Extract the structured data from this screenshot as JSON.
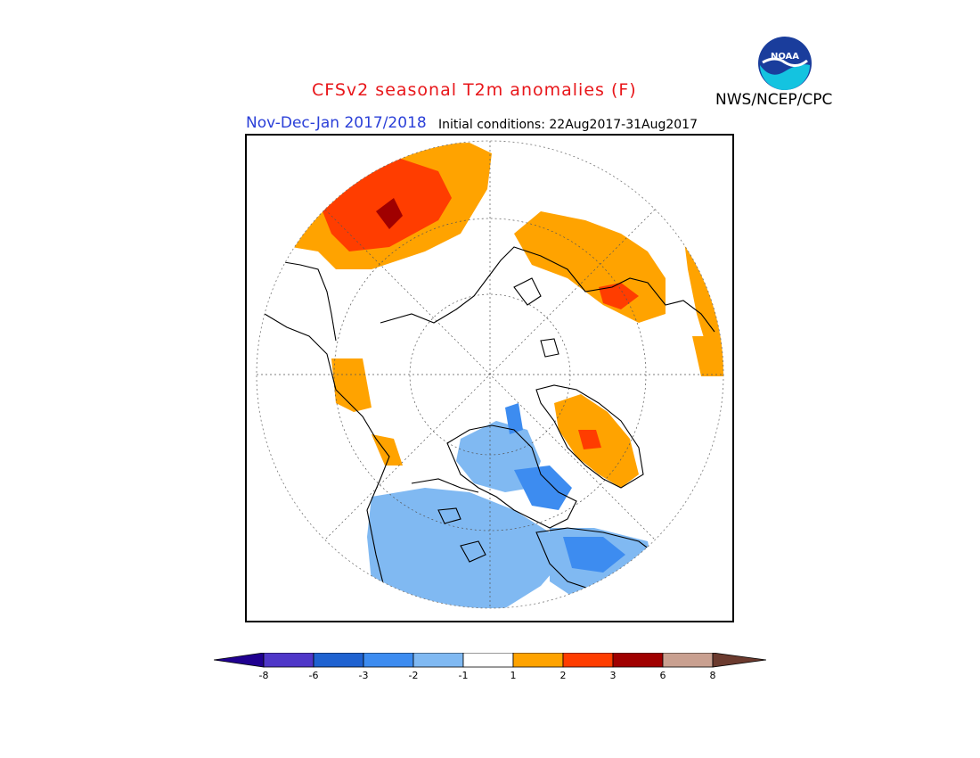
{
  "header": {
    "title": "CFSv2 seasonal T2m anomalies (F)",
    "season": "Nov-Dec-Jan 2017/2018",
    "initial_conditions": "Initial conditions: 22Aug2017-31Aug2017",
    "agency": "NWS/NCEP/CPC",
    "logo_text": "NOAA"
  },
  "legend": {
    "tick_labels": [
      "-8",
      "-6",
      "-3",
      "-2",
      "-1",
      "1",
      "2",
      "3",
      "6",
      "8"
    ],
    "colors": [
      "#200090",
      "#4f37c8",
      "#1f62d0",
      "#3d8cf0",
      "#80b9f2",
      "#ffffff",
      "#ffa300",
      "#ff3d00",
      "#a00000",
      "#c9a090",
      "#6b3a2e"
    ]
  }
}
